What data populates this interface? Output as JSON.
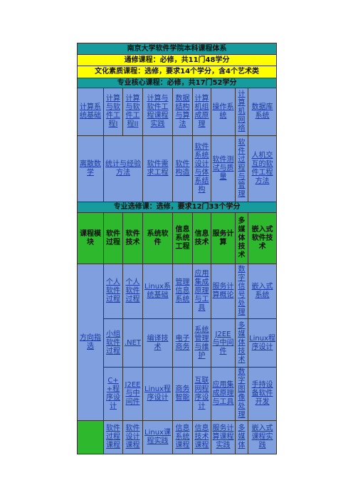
{
  "title": "南京大学软件学院本科课程体系",
  "general": "通修课程：必修，共11门48学分",
  "culture": "文化素质课程：选修，要求14个学分，含4个艺术类",
  "core_header": "专业核心课程：必修，共17门52学分",
  "core_rows": [
    [
      "计算系统基础",
      "计算与软件工程I",
      "计算与软件工程II",
      "计算与软件工程课程实践",
      "数据结构与算法",
      "计算机组成原理",
      "操作系统",
      "计算机网络",
      "数据库系统"
    ],
    [
      "离散数学",
      "统计与经验方法",
      "软件需求工程",
      "软件构造",
      "软件系统设计与体系结构",
      "软件测试与质量",
      "软件过程与管理",
      "人机交互的软件工程方法"
    ]
  ],
  "elective_header": "专业选修课：选修，要求12门33个学分",
  "elective_columns": [
    "课程模块",
    "软件过程",
    "软件技术",
    "系统软件",
    "信息系统工程",
    "信息技术",
    "服务计算",
    "多媒体技术",
    "嵌入式软件技术"
  ],
  "elective_module": "方向指选",
  "elective_rows": [
    [
      "个人软件过程",
      "个人软件过程",
      "Linux系统基础",
      "管理信息系统",
      "应用集成原理与工具",
      "服务计算概论",
      "数字信号处理",
      "嵌入式系统"
    ],
    [
      "小组软件过程",
      ".NET",
      "编译技术",
      "电子商务",
      "系统管理与维护",
      "J2EE与中间件",
      "多媒体技术",
      "Linux程序设计"
    ],
    [
      "C++程序设计",
      "J2EE与中间件",
      "Linux程序设计",
      "商务智能",
      "互联网程序设计",
      "应用集成原理与工具",
      "数字图像处理",
      "手持设备软件开发"
    ],
    [
      "软件过程课程",
      "软件设计课程",
      "Linux课程实践",
      "信息系统课程",
      "信息技术课程",
      "服务计算课程实践",
      "多媒体",
      "嵌入式课程实践"
    ]
  ]
}
